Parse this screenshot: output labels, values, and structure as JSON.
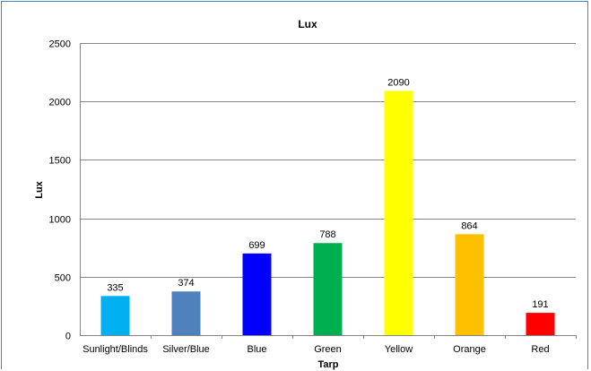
{
  "chart_data": {
    "type": "bar",
    "title": "Lux",
    "xlabel": "Tarp",
    "ylabel": "Lux",
    "ylim": [
      0,
      2500
    ],
    "yticks": [
      0,
      500,
      1000,
      1500,
      2000,
      2500
    ],
    "grid": true,
    "legend": "none",
    "categories": [
      "Sunlight/Blinds",
      "Silver/Blue",
      "Blue",
      "Green",
      "Yellow",
      "Orange",
      "Red"
    ],
    "values": [
      335,
      374,
      699,
      788,
      2090,
      864,
      191
    ],
    "data_labels": [
      "335",
      "374",
      "699",
      "788",
      "2090",
      "864",
      "191"
    ],
    "bar_colors": [
      "#00b0f0",
      "#4f81bd",
      "#0000ff",
      "#00b050",
      "#ffff00",
      "#ffc000",
      "#ff0000"
    ]
  },
  "colors": {
    "frame": "#4f81bd",
    "gridline": "#868686"
  }
}
